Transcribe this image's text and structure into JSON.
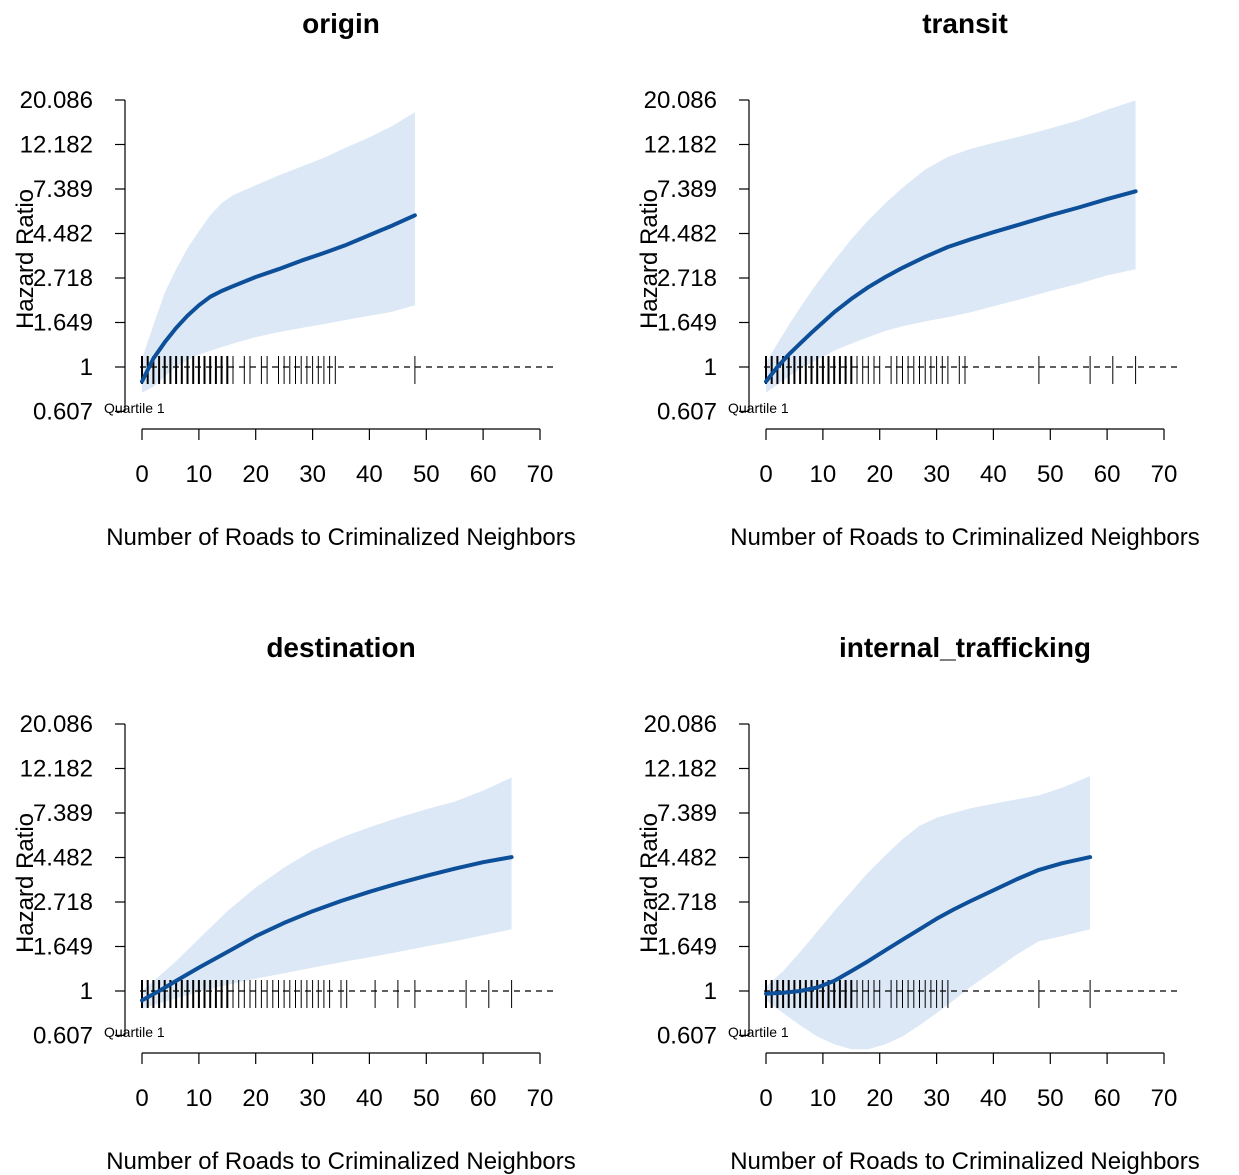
{
  "colors": {
    "line": "#0d4f99",
    "band": "#dce8f6",
    "rug": "#000000",
    "reference": "#000000"
  },
  "chart_data": [
    {
      "type": "line",
      "title": "origin",
      "xlabel": "Number of Roads to Criminalized Neighbors",
      "ylabel": "Hazard Ratio",
      "y_scale": "log",
      "yticks": [
        "20.086",
        "12.182",
        "7.389",
        "4.482",
        "2.718",
        "1.649",
        "1",
        "0.607"
      ],
      "xticks": [
        "0",
        "10",
        "20",
        "30",
        "40",
        "50",
        "60",
        "70"
      ],
      "xlim": [
        0,
        70
      ],
      "reference_line": 1,
      "annotation": "Quartile 1",
      "x": [
        0,
        2,
        4,
        6,
        8,
        10,
        12,
        14,
        16,
        20,
        24,
        28,
        32,
        36,
        40,
        44,
        48
      ],
      "hr": [
        0.85,
        1.1,
        1.32,
        1.55,
        1.78,
        2.0,
        2.2,
        2.35,
        2.48,
        2.75,
        3.0,
        3.3,
        3.6,
        3.95,
        4.4,
        4.9,
        5.5
      ],
      "lower": [
        0.75,
        0.8,
        0.9,
        1.0,
        1.08,
        1.15,
        1.2,
        1.25,
        1.3,
        1.4,
        1.48,
        1.55,
        1.62,
        1.7,
        1.78,
        1.86,
        2.0
      ],
      "upper": [
        1.1,
        1.6,
        2.3,
        3.0,
        3.8,
        4.6,
        5.5,
        6.3,
        6.9,
        7.7,
        8.6,
        9.5,
        10.5,
        11.8,
        13.2,
        15.0,
        17.5
      ],
      "rug": [
        0,
        1,
        2,
        3,
        4,
        5,
        6,
        7,
        8,
        9,
        10,
        11,
        12,
        13,
        14,
        15,
        16,
        18,
        19,
        21,
        22,
        24,
        25,
        26,
        27,
        28,
        29,
        30,
        31,
        32,
        33,
        34,
        48
      ]
    },
    {
      "type": "line",
      "title": "transit",
      "xlabel": "Number of Roads to Criminalized Neighbors",
      "ylabel": "Hazard Ratio",
      "y_scale": "log",
      "yticks": [
        "20.086",
        "12.182",
        "7.389",
        "4.482",
        "2.718",
        "1.649",
        "1",
        "0.607"
      ],
      "xticks": [
        "0",
        "10",
        "20",
        "30",
        "40",
        "50",
        "60",
        "70"
      ],
      "xlim": [
        0,
        70
      ],
      "reference_line": 1,
      "annotation": "Quartile 1",
      "x": [
        0,
        2,
        4,
        6,
        8,
        10,
        12,
        15,
        18,
        21,
        24,
        28,
        32,
        36,
        40,
        45,
        50,
        55,
        60,
        65
      ],
      "hr": [
        0.85,
        1.0,
        1.15,
        1.3,
        1.47,
        1.65,
        1.85,
        2.15,
        2.45,
        2.75,
        3.05,
        3.45,
        3.85,
        4.2,
        4.55,
        5.0,
        5.5,
        6.0,
        6.6,
        7.2
      ],
      "lower": [
        0.75,
        0.82,
        0.9,
        0.98,
        1.05,
        1.12,
        1.2,
        1.3,
        1.4,
        1.5,
        1.58,
        1.67,
        1.75,
        1.85,
        1.98,
        2.15,
        2.35,
        2.55,
        2.8,
        3.0
      ],
      "upper": [
        1.05,
        1.3,
        1.6,
        1.95,
        2.35,
        2.8,
        3.3,
        4.2,
        5.2,
        6.3,
        7.5,
        9.2,
        10.6,
        11.6,
        12.4,
        13.4,
        14.6,
        16.0,
        18.0,
        20.0
      ],
      "rug": [
        0,
        1,
        2,
        3,
        4,
        5,
        6,
        7,
        8,
        9,
        10,
        11,
        12,
        13,
        14,
        15,
        16,
        17,
        18,
        19,
        20,
        22,
        23,
        24,
        25,
        26,
        27,
        28,
        29,
        30,
        31,
        32,
        34,
        35,
        48,
        57,
        61,
        65
      ]
    },
    {
      "type": "line",
      "title": "destination",
      "xlabel": "Number of Roads to Criminalized Neighbors",
      "ylabel": "Hazard Ratio",
      "y_scale": "log",
      "yticks": [
        "20.086",
        "12.182",
        "7.389",
        "4.482",
        "2.718",
        "1.649",
        "1",
        "0.607"
      ],
      "xticks": [
        "0",
        "10",
        "20",
        "30",
        "40",
        "50",
        "60",
        "70"
      ],
      "xlim": [
        0,
        70
      ],
      "reference_line": 1,
      "annotation": "Quartile 1",
      "x": [
        0,
        3,
        6,
        10,
        15,
        20,
        25,
        30,
        35,
        40,
        45,
        50,
        55,
        60,
        65
      ],
      "hr": [
        0.9,
        1.0,
        1.12,
        1.3,
        1.55,
        1.85,
        2.15,
        2.45,
        2.75,
        3.05,
        3.35,
        3.65,
        3.95,
        4.25,
        4.5
      ],
      "lower": [
        0.82,
        0.87,
        0.92,
        0.99,
        1.07,
        1.15,
        1.22,
        1.3,
        1.38,
        1.46,
        1.55,
        1.65,
        1.75,
        1.87,
        2.0
      ],
      "upper": [
        1.0,
        1.18,
        1.4,
        1.8,
        2.45,
        3.2,
        4.0,
        4.85,
        5.6,
        6.3,
        7.0,
        7.7,
        8.4,
        9.5,
        11.0
      ],
      "rug": [
        0,
        1,
        2,
        3,
        4,
        5,
        6,
        7,
        8,
        9,
        10,
        11,
        12,
        13,
        14,
        15,
        16,
        17,
        18,
        19,
        20,
        21,
        22,
        23,
        24,
        25,
        26,
        27,
        28,
        29,
        30,
        31,
        32,
        33,
        35,
        36,
        41,
        45,
        48,
        57,
        61,
        65
      ]
    },
    {
      "type": "line",
      "title": "internal_trafficking",
      "xlabel": "Number of Roads to Criminalized Neighbors",
      "ylabel": "Hazard Ratio",
      "y_scale": "log",
      "yticks": [
        "20.086",
        "12.182",
        "7.389",
        "4.482",
        "2.718",
        "1.649",
        "1",
        "0.607"
      ],
      "xticks": [
        "0",
        "10",
        "20",
        "30",
        "40",
        "50",
        "60",
        "70"
      ],
      "xlim": [
        0,
        70
      ],
      "reference_line": 1,
      "annotation": "Quartile 1",
      "x": [
        0,
        3,
        6,
        9,
        12,
        15,
        18,
        21,
        24,
        27,
        30,
        33,
        36,
        40,
        44,
        48,
        52,
        57
      ],
      "hr": [
        0.97,
        0.98,
        1.0,
        1.04,
        1.12,
        1.25,
        1.4,
        1.58,
        1.78,
        2.0,
        2.25,
        2.5,
        2.75,
        3.1,
        3.5,
        3.9,
        4.2,
        4.5
      ],
      "lower": [
        0.9,
        0.78,
        0.68,
        0.6,
        0.55,
        0.52,
        0.52,
        0.55,
        0.6,
        0.68,
        0.78,
        0.9,
        1.05,
        1.25,
        1.5,
        1.75,
        1.85,
        2.0
      ],
      "upper": [
        1.05,
        1.25,
        1.55,
        1.95,
        2.45,
        3.05,
        3.8,
        4.6,
        5.5,
        6.4,
        7.0,
        7.4,
        7.8,
        8.2,
        8.6,
        9.0,
        9.8,
        11.2
      ],
      "rug": [
        0,
        1,
        2,
        3,
        4,
        5,
        6,
        7,
        8,
        9,
        10,
        11,
        12,
        13,
        14,
        15,
        16,
        17,
        18,
        19,
        20,
        22,
        23,
        24,
        25,
        26,
        27,
        28,
        29,
        30,
        31,
        32,
        48,
        57
      ]
    }
  ]
}
